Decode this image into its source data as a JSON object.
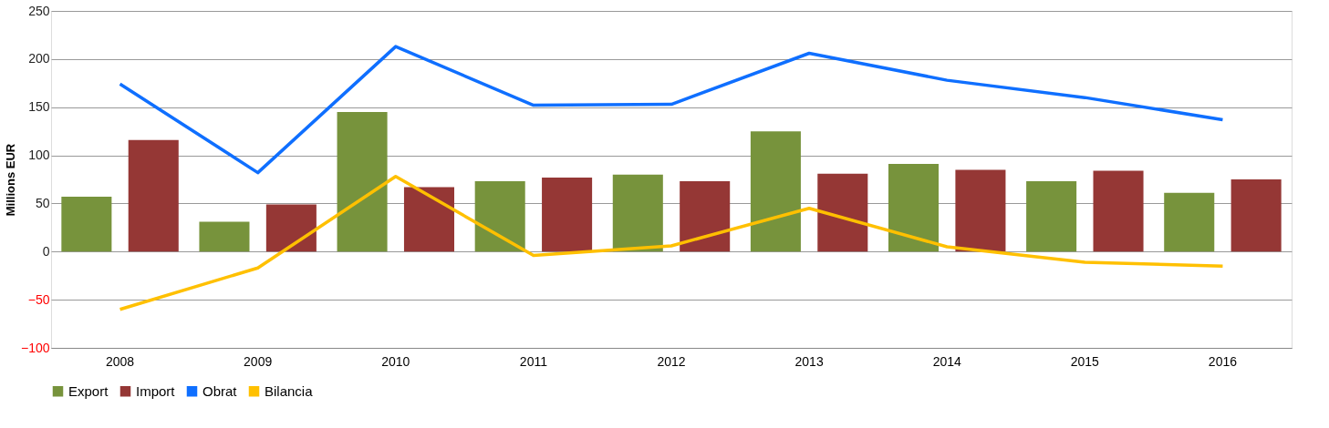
{
  "chart_data": {
    "type": "bar",
    "ylabel": "Millions EUR",
    "categories": [
      "2008",
      "2009",
      "2010",
      "2011",
      "2012",
      "2013",
      "2014",
      "2015",
      "2016"
    ],
    "series": [
      {
        "name": "Export",
        "color": "#77933c",
        "values": [
          57,
          31,
          145,
          73,
          80,
          125,
          91,
          73,
          61
        ]
      },
      {
        "name": "Import",
        "color": "#953735",
        "values": [
          116,
          49,
          67,
          77,
          73,
          81,
          85,
          84,
          75
        ]
      },
      {
        "name": "Obrat",
        "type": "line",
        "color": "#0f6fff",
        "values": [
          174,
          82,
          213,
          152,
          153,
          206,
          178,
          160,
          137
        ]
      },
      {
        "name": "Bilancia",
        "type": "line",
        "color": "#ffc000",
        "values": [
          -60,
          -17,
          78,
          -4,
          6,
          45,
          5,
          -11,
          -15
        ]
      }
    ],
    "ylim": [
      -100,
      250
    ],
    "yticks": [
      -100,
      -50,
      0,
      50,
      100,
      150,
      200,
      250
    ],
    "grid": "y",
    "legend": "bottom",
    "marker": "none"
  }
}
